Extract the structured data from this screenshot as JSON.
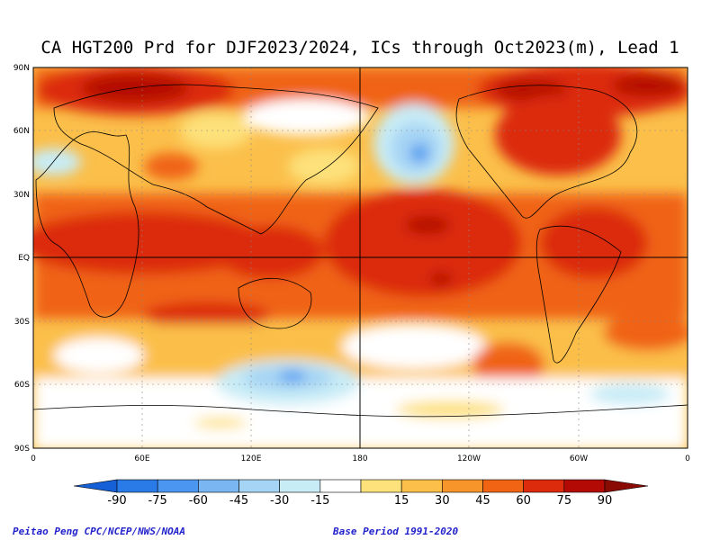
{
  "title": "CA HGT200 Prd for DJF2023/2024, ICs through Oct2023(m), Lead 1",
  "lat_labels": [
    "90N",
    "60N",
    "30N",
    "EQ",
    "30S",
    "60S",
    "90S"
  ],
  "lon_labels": [
    "0",
    "60E",
    "120E",
    "180",
    "120W",
    "60W",
    "0"
  ],
  "colorbar": {
    "labels": [
      "-90",
      "-75",
      "-60",
      "-45",
      "-30",
      "-15",
      "15",
      "30",
      "45",
      "60",
      "75",
      "90"
    ],
    "colors": [
      "#1560d6",
      "#2a7be8",
      "#4a96f0",
      "#7ab6f2",
      "#a6d4f4",
      "#c8ecf6",
      "#ffffff",
      "#fde17a",
      "#fbbf4a",
      "#f7942a",
      "#f06414",
      "#dc2a0c",
      "#b40a06",
      "#8a0a04"
    ]
  },
  "footer": {
    "left": "Peitao Peng CPC/NCEP/NWS/NOAA",
    "right": "Base Period 1991-2020"
  }
}
